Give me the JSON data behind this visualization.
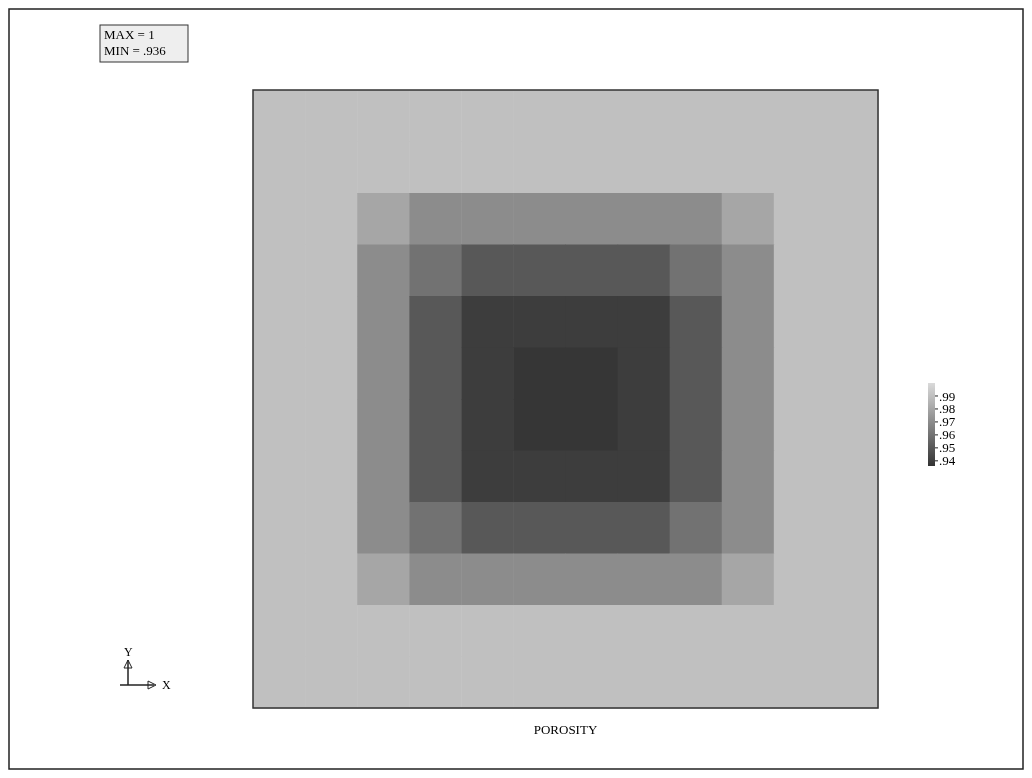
{
  "chart_data": {
    "type": "heatmap",
    "title": "POROSITY",
    "annotations": [
      "MAX = 1",
      "MIN = .936",
      "Y",
      "X"
    ],
    "categories": [
      null,
      null,
      null,
      null,
      null,
      null,
      null,
      null,
      null,
      null,
      null,
      null
    ],
    "y_categories": [
      null,
      null,
      null,
      null,
      null,
      null,
      null,
      null,
      null,
      null,
      null,
      null
    ],
    "cells": [
      [
        0.99,
        0.99,
        0.99,
        0.99,
        0.99,
        0.99,
        0.99,
        0.99,
        0.99,
        0.99,
        0.99,
        0.99
      ],
      [
        0.99,
        0.99,
        0.99,
        0.99,
        0.99,
        0.99,
        0.99,
        0.99,
        0.99,
        0.99,
        0.99,
        0.99
      ],
      [
        0.99,
        0.99,
        0.98,
        0.97,
        0.97,
        0.97,
        0.97,
        0.97,
        0.97,
        0.98,
        0.99,
        0.99
      ],
      [
        0.99,
        0.99,
        0.97,
        0.96,
        0.95,
        0.95,
        0.95,
        0.95,
        0.96,
        0.97,
        0.99,
        0.99
      ],
      [
        0.99,
        0.99,
        0.97,
        0.95,
        0.94,
        0.94,
        0.94,
        0.94,
        0.95,
        0.97,
        0.99,
        0.99
      ],
      [
        0.99,
        0.99,
        0.97,
        0.95,
        0.94,
        0.937,
        0.937,
        0.94,
        0.95,
        0.97,
        0.99,
        0.99
      ],
      [
        0.99,
        0.99,
        0.97,
        0.95,
        0.94,
        0.937,
        0.937,
        0.94,
        0.95,
        0.97,
        0.99,
        0.99
      ],
      [
        0.99,
        0.99,
        0.97,
        0.95,
        0.94,
        0.94,
        0.94,
        0.94,
        0.95,
        0.97,
        0.99,
        0.99
      ],
      [
        0.99,
        0.99,
        0.97,
        0.96,
        0.95,
        0.95,
        0.95,
        0.95,
        0.96,
        0.97,
        0.99,
        0.99
      ],
      [
        0.99,
        0.99,
        0.98,
        0.97,
        0.97,
        0.97,
        0.97,
        0.97,
        0.97,
        0.98,
        0.99,
        0.99
      ],
      [
        0.99,
        0.99,
        0.99,
        0.99,
        0.99,
        0.99,
        0.99,
        0.99,
        0.99,
        0.99,
        0.99,
        0.99
      ],
      [
        0.99,
        0.99,
        0.99,
        0.99,
        0.99,
        0.99,
        0.99,
        0.99,
        0.99,
        0.99,
        0.99,
        0.99
      ]
    ],
    "clim": [
      0.936,
      1
    ],
    "cticks": [
      {
        "value": 0.99,
        "label": ".99"
      },
      {
        "value": 0.98,
        "label": ".98"
      },
      {
        "value": 0.97,
        "label": ".97"
      },
      {
        "value": 0.96,
        "label": ".96"
      },
      {
        "value": 0.95,
        "label": ".95"
      },
      {
        "value": 0.94,
        "label": ".94"
      }
    ]
  }
}
